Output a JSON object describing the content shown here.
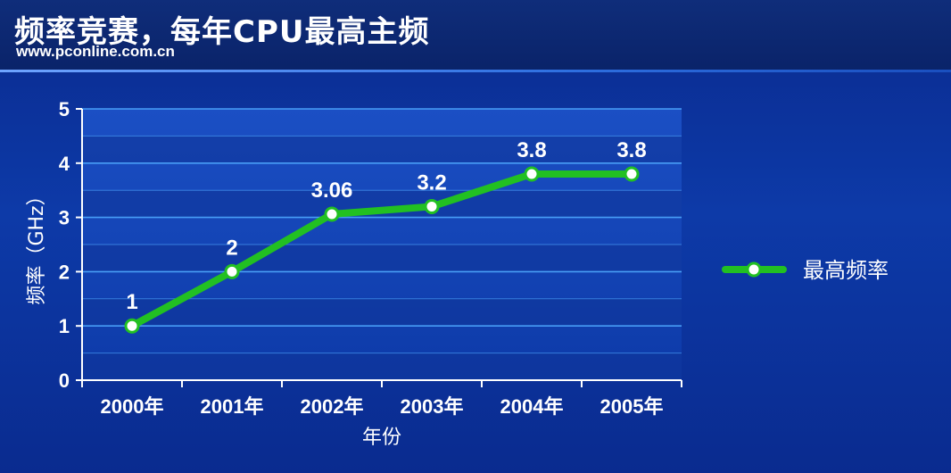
{
  "header": {
    "title": "频率竞赛，每年CPU最高主频",
    "url": "www.pconline.com.cn"
  },
  "colors": {
    "background": "#0d3aa8",
    "line": "#22c022",
    "marker_fill": "#ffffff",
    "grid": "#4fa8ff",
    "text": "#ffffff"
  },
  "chart_data": {
    "type": "line",
    "title": "",
    "xlabel": "年份",
    "ylabel": "频率（GHz）",
    "categories": [
      "2000年",
      "2001年",
      "2002年",
      "2003年",
      "2004年",
      "2005年"
    ],
    "series": [
      {
        "name": "最高频率",
        "values": [
          1,
          2,
          3.06,
          3.2,
          3.8,
          3.8
        ]
      }
    ],
    "data_labels": [
      "1",
      "2",
      "3.06",
      "3.2",
      "3.8",
      "3.8"
    ],
    "yticks": [
      "0",
      "1",
      "2",
      "3",
      "4",
      "5"
    ],
    "ylim": [
      0,
      5
    ],
    "grid": true,
    "legend": "right"
  }
}
